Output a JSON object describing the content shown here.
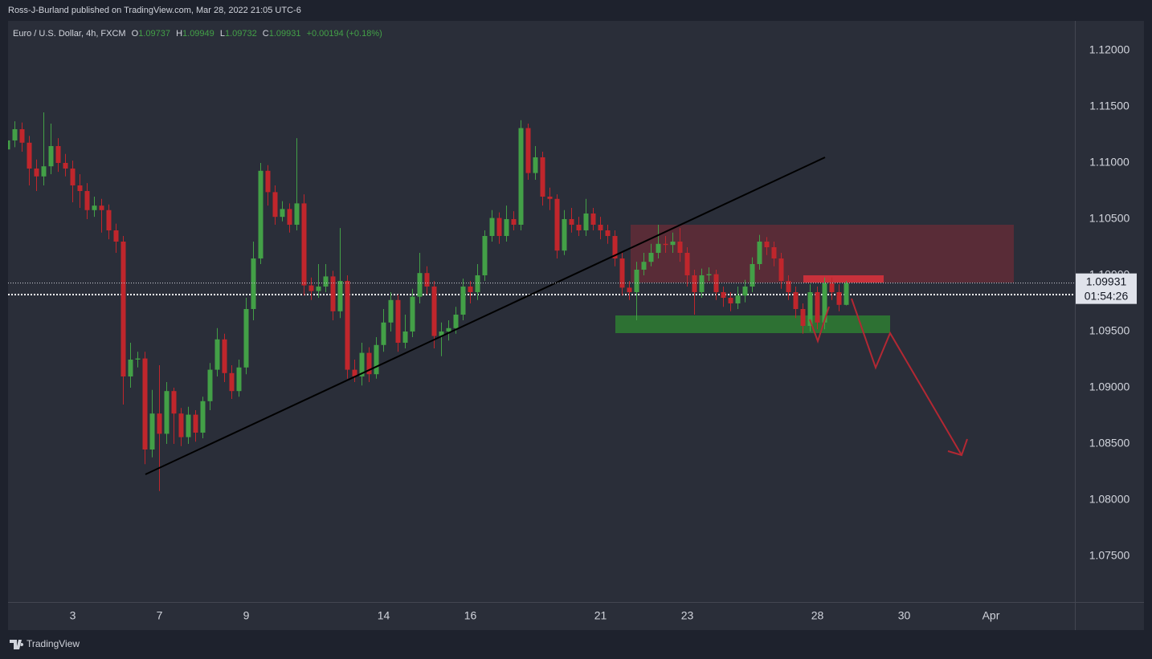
{
  "published": "Ross-J-Burland published on TradingView.com, Mar 28, 2022 21:05 UTC-6",
  "footer": "TradingView",
  "chart_data": {
    "type": "candlestick",
    "symbol": "Euro / U.S. Dollar, 4h, FXCM",
    "ohlc_labels": [
      "O",
      "H",
      "L",
      "C"
    ],
    "ohlc_values": [
      1.09737,
      1.09949,
      1.09732,
      1.09931
    ],
    "change": "+0.00194 (+0.18%)",
    "last_price": 1.09931,
    "countdown": "01:54:26",
    "up_color": "#43a047",
    "down_color": "#c0262c",
    "grid": false,
    "ylim": [
      1.07093,
      1.12264
    ],
    "yticks": [
      {
        "value": 1.12,
        "label": "1.12000"
      },
      {
        "value": 1.115,
        "label": "1.11500"
      },
      {
        "value": 1.11,
        "label": "1.11000"
      },
      {
        "value": 1.105,
        "label": "1.10500"
      },
      {
        "value": 1.1,
        "label": "1.10000"
      },
      {
        "value": 1.095,
        "label": "1.09500"
      },
      {
        "value": 1.09,
        "label": "1.09000"
      },
      {
        "value": 1.085,
        "label": "1.08500"
      },
      {
        "value": 1.08,
        "label": "1.08000"
      },
      {
        "value": 1.075,
        "label": "1.07500"
      }
    ],
    "categories": [
      null,
      null,
      null,
      null,
      null,
      null,
      null,
      null,
      null,
      "3",
      null,
      null,
      null,
      null,
      null,
      null,
      null,
      null,
      null,
      null,
      null,
      "7",
      null,
      null,
      null,
      null,
      null,
      null,
      null,
      null,
      null,
      null,
      null,
      "9",
      null,
      null,
      null,
      null,
      null,
      null,
      null,
      null,
      null,
      null,
      null,
      null,
      null,
      null,
      null,
      null,
      null,
      null,
      "14",
      null,
      null,
      null,
      null,
      null,
      null,
      null,
      null,
      null,
      null,
      null,
      "16",
      null,
      null,
      null,
      null,
      null,
      null,
      null,
      null,
      null,
      null,
      null,
      null,
      null,
      null,
      null,
      null,
      null,
      "21",
      null,
      null,
      null,
      null,
      null,
      null,
      null,
      null,
      null,
      null,
      null,
      "23",
      null,
      null,
      null,
      null,
      null,
      null,
      null,
      null,
      null,
      null,
      null,
      null,
      null,
      null,
      null,
      null,
      null,
      "28",
      null,
      null,
      null,
      null,
      null,
      null,
      null,
      null,
      null,
      null,
      null,
      "30",
      null,
      null,
      null,
      null,
      null,
      null,
      null,
      null,
      null,
      null,
      null,
      "Apr"
    ],
    "open": [
      1.1112,
      1.112,
      1.113,
      1.1118,
      1.1095,
      1.1088,
      1.1097,
      1.1115,
      1.11,
      1.1095,
      1.108,
      1.1075,
      1.1058,
      1.1062,
      1.1058,
      1.104,
      1.103,
      1.091,
      1.0925,
      1.0926,
      1.0845,
      1.0877,
      1.0859,
      1.0897,
      1.0877,
      1.0856,
      1.0876,
      1.086,
      1.0888,
      1.0916,
      1.0943,
      1.0913,
      1.0897,
      1.0918,
      1.097,
      1.1015,
      1.1093,
      1.1074,
      1.1052,
      1.1059,
      1.1045,
      1.1064,
      1.0991,
      1.0986,
      1.099,
      1.0999,
      1.0968,
      1.0995,
      1.0916,
      1.091,
      1.0931,
      1.0912,
      1.0938,
      1.0958,
      1.0978,
      1.094,
      1.095,
      1.0981,
      1.1002,
      1.099,
      1.0946,
      1.095,
      1.0953,
      1.0965,
      1.099,
      1.0985,
      1.1,
      1.1035,
      1.1051,
      1.1035,
      1.105,
      1.1045,
      1.1131,
      1.1091,
      1.1105,
      1.107,
      1.1068,
      1.1022,
      1.105,
      1.1045,
      1.104,
      1.1055,
      1.1045,
      1.104,
      1.1035,
      1.1015,
      1.0989,
      1.0985,
      1.1005,
      1.1012,
      1.102,
      1.1028,
      1.1027,
      1.103,
      1.102,
      1.1,
      1.0985,
      1.1,
      1.1001,
      1.0985,
      1.098,
      1.0975,
      1.0982,
      1.099,
      1.101,
      1.103,
      1.1025,
      1.1015,
      1.0995,
      1.0985,
      1.097,
      1.0955,
      1.0985,
      1.0958,
      1.0993,
      1.0985,
      1.09737,
      null,
      null,
      null,
      null,
      null,
      null,
      null,
      null,
      null,
      null,
      null,
      null,
      null,
      null,
      null,
      null,
      null,
      null,
      null,
      null
    ],
    "high": [
      1.1128,
      1.1137,
      1.1136,
      1.1124,
      1.1103,
      1.1145,
      1.1135,
      1.1122,
      1.1108,
      1.1102,
      1.109,
      1.1082,
      1.107,
      1.1068,
      1.1063,
      1.1046,
      1.1035,
      1.094,
      1.0932,
      1.0932,
      1.0898,
      1.092,
      1.0905,
      1.09,
      1.0882,
      1.0883,
      1.088,
      1.0892,
      1.0922,
      1.0953,
      1.0948,
      1.092,
      1.0925,
      1.098,
      1.103,
      1.11,
      1.1098,
      1.108,
      1.1066,
      1.1064,
      1.1122,
      1.1072,
      1.0998,
      1.101,
      1.101,
      1.1004,
      1.1042,
      1.1,
      1.0925,
      1.094,
      1.0936,
      1.0945,
      1.097,
      1.0985,
      1.0983,
      1.0965,
      1.0988,
      1.102,
      1.1008,
      1.0995,
      1.0958,
      1.096,
      1.0972,
      1.0997,
      1.0995,
      1.101,
      1.104,
      1.1058,
      1.1056,
      1.1062,
      1.1057,
      1.1138,
      1.1135,
      1.1115,
      1.111,
      1.1078,
      1.1072,
      1.1058,
      1.106,
      1.1052,
      1.1068,
      1.106,
      1.1052,
      1.1045,
      1.104,
      1.102,
      1.0995,
      1.1012,
      1.102,
      1.1028,
      1.1045,
      1.1035,
      1.1038,
      1.1042,
      1.1025,
      1.1005,
      1.1006,
      1.1007,
      1.1005,
      1.099,
      1.0985,
      1.099,
      1.0996,
      1.1016,
      1.1036,
      1.1034,
      1.103,
      1.102,
      1.1,
      1.099,
      1.0975,
      1.0992,
      1.099,
      1.0998,
      1.0998,
      1.0992,
      1.09949,
      null,
      null,
      null,
      null,
      null,
      null,
      null,
      null,
      null,
      null,
      null,
      null,
      null,
      null,
      null,
      null,
      null,
      null,
      null,
      null
    ],
    "low": [
      1.11,
      1.1114,
      1.111,
      1.108,
      1.1075,
      1.108,
      1.109,
      1.1092,
      1.1088,
      1.1065,
      1.106,
      1.105,
      1.1052,
      1.1038,
      1.1032,
      1.102,
      1.0885,
      1.09,
      1.0918,
      1.0832,
      1.0838,
      1.0808,
      1.085,
      1.085,
      1.0848,
      1.085,
      1.0852,
      1.0855,
      1.088,
      1.091,
      1.0905,
      1.089,
      1.0892,
      1.0912,
      1.096,
      1.101,
      1.1062,
      1.1045,
      1.1048,
      1.1038,
      1.104,
      1.0982,
      1.0978,
      1.098,
      1.0985,
      1.096,
      1.0962,
      1.0908,
      1.0905,
      1.0902,
      1.0905,
      1.0908,
      1.0932,
      1.095,
      1.0932,
      1.0935,
      1.0945,
      1.0975,
      1.0983,
      1.0935,
      1.0928,
      1.0942,
      1.0948,
      1.096,
      1.0975,
      1.0978,
      1.0995,
      1.103,
      1.1028,
      1.103,
      1.104,
      1.104,
      1.1085,
      1.1085,
      1.1062,
      1.1058,
      1.1015,
      1.1018,
      1.1038,
      1.1035,
      1.1035,
      1.104,
      1.1032,
      1.1028,
      1.1008,
      1.0982,
      1.0978,
      1.096,
      1.1,
      1.1008,
      1.1015,
      1.102,
      1.102,
      1.1012,
      1.099,
      1.0965,
      1.098,
      1.0995,
      1.0978,
      1.0972,
      1.0968,
      1.097,
      1.0976,
      1.0985,
      1.1005,
      1.1018,
      1.1008,
      1.0988,
      1.0978,
      1.0962,
      1.0948,
      1.095,
      1.0952,
      1.0952,
      1.0978,
      1.0968,
      1.09732,
      null,
      null,
      null,
      null,
      null,
      null,
      null,
      null,
      null,
      null,
      null,
      null,
      null,
      null,
      null,
      null,
      null,
      null,
      null,
      null
    ],
    "close": [
      1.112,
      1.113,
      1.1118,
      1.1095,
      1.1088,
      1.1097,
      1.1115,
      1.11,
      1.1095,
      1.108,
      1.1075,
      1.1058,
      1.1062,
      1.1058,
      1.104,
      1.103,
      1.091,
      1.0925,
      1.0926,
      1.0845,
      1.0877,
      1.0859,
      1.0897,
      1.0877,
      1.0856,
      1.0876,
      1.086,
      1.0888,
      1.0916,
      1.0943,
      1.0913,
      1.0897,
      1.0918,
      1.097,
      1.1015,
      1.1093,
      1.1074,
      1.1052,
      1.1059,
      1.1045,
      1.1064,
      1.0991,
      1.0986,
      1.099,
      1.0999,
      1.0968,
      1.0995,
      1.0916,
      1.091,
      1.0931,
      1.0912,
      1.0938,
      1.0958,
      1.0978,
      1.094,
      1.095,
      1.0981,
      1.1002,
      1.099,
      1.0946,
      1.095,
      1.0953,
      1.0965,
      1.099,
      1.0985,
      1.1,
      1.1035,
      1.1051,
      1.1035,
      1.105,
      1.1045,
      1.1131,
      1.1091,
      1.1105,
      1.107,
      1.1068,
      1.1022,
      1.105,
      1.1045,
      1.104,
      1.1055,
      1.1045,
      1.104,
      1.1035,
      1.1015,
      1.0989,
      1.0985,
      1.1005,
      1.1012,
      1.102,
      1.1028,
      1.1027,
      1.103,
      1.102,
      1.1,
      1.0985,
      1.1,
      1.1001,
      1.0985,
      1.098,
      1.0975,
      1.0982,
      1.099,
      1.101,
      1.103,
      1.1025,
      1.1015,
      1.0995,
      1.0985,
      1.097,
      1.0955,
      1.0985,
      1.0958,
      1.0993,
      1.0985,
      1.09737,
      1.09931,
      null,
      null,
      null,
      null,
      null,
      null,
      null,
      null,
      null,
      null,
      null,
      null,
      null,
      null,
      null,
      null,
      null,
      null,
      null,
      null
    ]
  }
}
